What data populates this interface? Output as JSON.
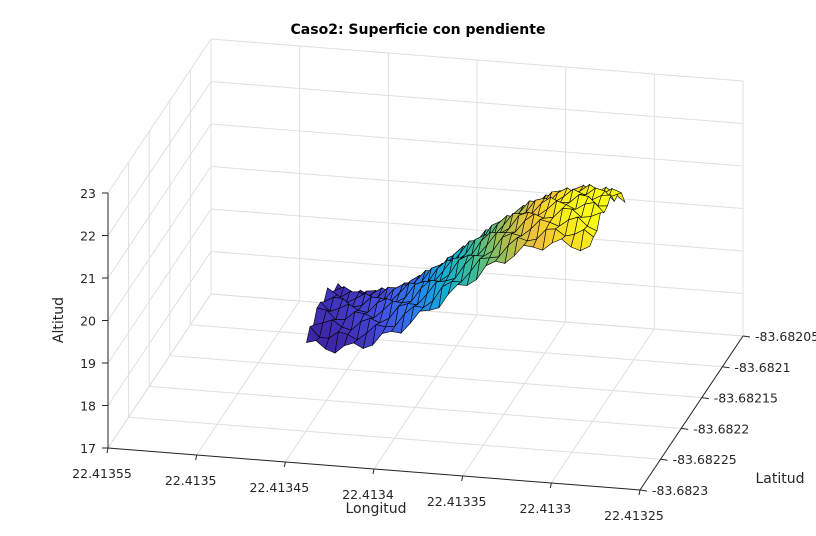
{
  "chart_data": {
    "type": "surface",
    "title": "Caso2: Superficie con pendiente",
    "xlabel": "Longitud",
    "ylabel": "Latitud",
    "zlabel": "Altitud",
    "x_ticks": [
      "22.41355",
      "22.4135",
      "22.41345",
      "22.4134",
      "22.41335",
      "22.4133",
      "22.41325"
    ],
    "y_ticks": [
      "-83.6823",
      "-83.68225",
      "-83.6822",
      "-83.68215",
      "-83.6821",
      "-83.68205"
    ],
    "z_ticks": [
      "17",
      "18",
      "19",
      "20",
      "21",
      "22",
      "23"
    ],
    "xlim": [
      22.41325,
      22.41355
    ],
    "ylim": [
      -83.6823,
      -83.68205
    ],
    "zlim": [
      17,
      23
    ],
    "grid": true,
    "colormap": "parula",
    "colors": {
      "low": "#3e26a8",
      "mid": "#21b1b4",
      "high": "#f9fb15",
      "edge": "#000000"
    },
    "surface": {
      "longitude_start": 22.41347,
      "longitude_end": 22.41328,
      "latitude_start": -83.68212,
      "latitude_end": -83.68225,
      "altitude_start": 18.2,
      "altitude_end": 22.9
    }
  }
}
